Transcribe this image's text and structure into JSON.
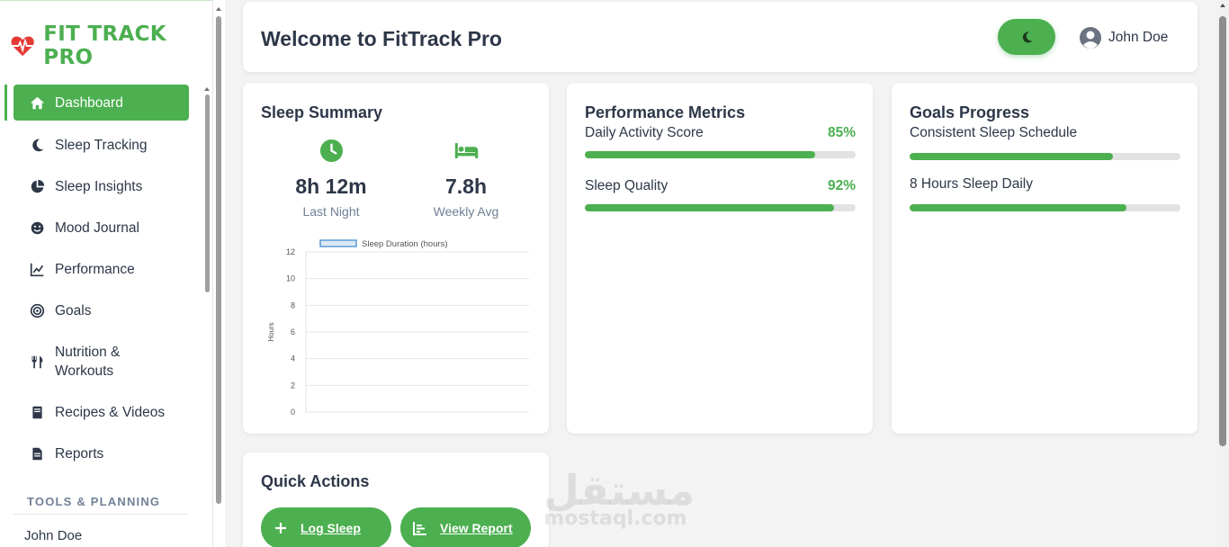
{
  "brand": {
    "name": "FIT TRACK PRO",
    "accent": "#4caf50"
  },
  "sidebar": {
    "items": [
      {
        "label": "Dashboard",
        "icon": "home-icon",
        "active": true
      },
      {
        "label": "Sleep Tracking",
        "icon": "moon-icon"
      },
      {
        "label": "Sleep Insights",
        "icon": "pie-chart-icon"
      },
      {
        "label": "Mood Journal",
        "icon": "smile-icon"
      },
      {
        "label": "Performance",
        "icon": "line-chart-icon"
      },
      {
        "label": "Goals",
        "icon": "target-icon"
      },
      {
        "label": "Nutrition & Workouts",
        "icon": "utensils-icon"
      },
      {
        "label": "Recipes & Videos",
        "icon": "book-icon"
      },
      {
        "label": "Reports",
        "icon": "file-icon"
      }
    ],
    "section_title": "TOOLS & PLANNING",
    "user_name": "John Doe"
  },
  "header": {
    "title": "Welcome to FitTrack Pro",
    "theme_icon": "moon-icon",
    "user_name": "John Doe",
    "user_icon": "user-circle-icon"
  },
  "sleep_summary": {
    "title": "Sleep Summary",
    "last_night": {
      "value": "8h 12m",
      "label": "Last Night",
      "icon": "clock-icon"
    },
    "weekly_avg": {
      "value": "7.8h",
      "label": "Weekly Avg",
      "icon": "bed-icon"
    }
  },
  "chart_data": {
    "type": "bar",
    "legend": [
      "Sleep Duration (hours)"
    ],
    "legend_position": "top",
    "series": [
      {
        "name": "Sleep Duration (hours)",
        "values": []
      }
    ],
    "categories": [],
    "ylabel": "Hours",
    "ylim": [
      0,
      12
    ],
    "yticks": [
      "0",
      "2",
      "4",
      "6",
      "8",
      "10",
      "12"
    ],
    "grid": true
  },
  "performance": {
    "title": "Performance Metrics",
    "metrics": [
      {
        "label": "Daily Activity Score",
        "percent": "85%",
        "value": 0.85
      },
      {
        "label": "Sleep Quality",
        "percent": "92%",
        "value": 0.92
      }
    ]
  },
  "goals": {
    "title": "Goals Progress",
    "items": [
      {
        "label": "Consistent Sleep Schedule",
        "value": 0.75
      },
      {
        "label": "8 Hours Sleep Daily",
        "value": 0.8
      }
    ]
  },
  "quick_actions": {
    "title": "Quick Actions",
    "buttons": [
      {
        "label": "Log Sleep",
        "icon": "plus-icon"
      },
      {
        "label": "View Report",
        "icon": "chart-bar-icon"
      }
    ]
  },
  "watermark": {
    "arabic": "مستقل",
    "latin": "mostaql.com"
  }
}
